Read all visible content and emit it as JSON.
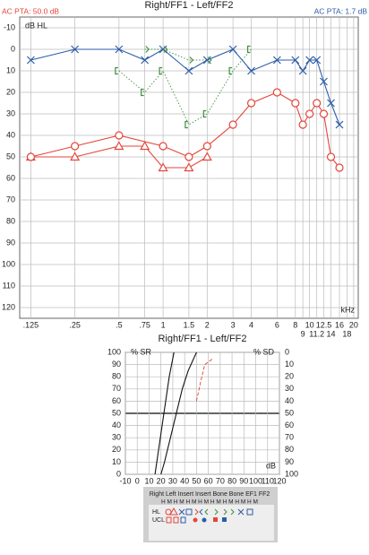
{
  "chart_data": [
    {
      "type": "line",
      "title": "Right/FF1 - Left/FF2",
      "left_note": "AC PTA: 50.0 dB",
      "right_note": "AC PTA: 1.7 dB",
      "y_label": "dB HL",
      "x_label": "kHz",
      "xscale": "log",
      "yreversed": true,
      "xlim": [
        0.105,
        21.5
      ],
      "ylim": [
        -15,
        125
      ],
      "grid": true,
      "xticks": [
        {
          "value": 0.125,
          "label": ".125"
        },
        {
          "value": 0.25,
          "label": ".25"
        },
        {
          "value": 0.5,
          "label": ".5"
        },
        {
          "value": 0.75,
          "label": ".75"
        },
        1,
        1.5,
        2,
        3,
        4,
        6,
        8,
        9,
        10,
        11.2,
        12.5,
        14,
        16,
        18,
        20
      ],
      "yticks": [
        -10,
        0,
        10,
        20,
        30,
        40,
        50,
        60,
        70,
        80,
        90,
        100,
        110,
        120
      ],
      "series": [
        {
          "color": "#e5453b",
          "marker": "triangle",
          "line": "solid",
          "x": [
            0.125,
            0.25,
            0.5,
            0.75,
            1,
            1.5,
            2
          ],
          "values": [
            50,
            50,
            45,
            45,
            55,
            55,
            50
          ]
        },
        {
          "color": "#e5453b",
          "marker": "circle",
          "line": "solid",
          "x": [
            0.125,
            0.25,
            0.5,
            1,
            1.5,
            2,
            3,
            4,
            6,
            8,
            9,
            10,
            11.2,
            12.5,
            14,
            16
          ],
          "values": [
            50,
            45,
            40,
            45,
            50,
            45,
            35,
            25,
            20,
            25,
            35,
            30,
            25,
            30,
            50,
            55
          ]
        },
        {
          "color": "#2b5ca8",
          "marker": "x",
          "line": "solid",
          "x": [
            0.125,
            0.25,
            0.5,
            0.75,
            1,
            1.5,
            2,
            3,
            4,
            6,
            8,
            9,
            10,
            11.2,
            12.5,
            14,
            16
          ],
          "values": [
            5,
            0,
            0,
            5,
            0,
            10,
            5,
            0,
            10,
            5,
            5,
            10,
            5,
            5,
            15,
            25,
            35
          ]
        },
        {
          "color": "#3f8f3f",
          "marker": "gt",
          "line": "dotted",
          "x": [
            0.75,
            1,
            1.5,
            2
          ],
          "values": [
            0,
            0,
            5,
            5
          ]
        },
        {
          "color": "#3f8f3f",
          "marker": "bracket",
          "line": "dotted",
          "x": [
            0.5,
            0.75,
            1,
            1.5,
            2,
            3,
            4
          ],
          "values": [
            10,
            20,
            10,
            35,
            30,
            10,
            0
          ]
        }
      ]
    },
    {
      "type": "line",
      "title": "Right/FF1 - Left/FF2",
      "y_label": "% SR",
      "y2_label": "% SD",
      "x_label": "dB",
      "xlim": [
        -10,
        120
      ],
      "ylim": [
        0,
        100
      ],
      "y2lim": [
        100,
        0
      ],
      "highlight_y": 50,
      "grid": true,
      "xticks": [
        -10,
        0,
        10,
        20,
        30,
        40,
        50,
        60,
        70,
        80,
        90,
        100,
        110,
        120
      ],
      "yticks": [
        0,
        10,
        20,
        30,
        40,
        50,
        60,
        70,
        80,
        90,
        100
      ],
      "y2ticks": [
        0,
        10,
        20,
        30,
        40,
        50,
        60,
        70,
        80,
        90,
        100
      ],
      "series": [
        {
          "color": "#111111",
          "line": "solid",
          "x": [
            15,
            18,
            21,
            24,
            27,
            31
          ],
          "values": [
            0,
            20,
            40,
            60,
            80,
            100
          ]
        },
        {
          "color": "#111111",
          "line": "solid",
          "x": [
            20,
            23,
            28,
            33,
            38,
            43,
            50
          ],
          "values": [
            0,
            10,
            30,
            50,
            70,
            85,
            100
          ]
        },
        {
          "color": "#e5453b",
          "line": "dashed",
          "x": [
            50,
            54,
            57,
            64
          ],
          "values": [
            60,
            78,
            90,
            95
          ]
        }
      ]
    }
  ],
  "legend_box": {
    "columns": "Right Left  Insert Insert Bone  Bone  EF1   FF2",
    "codes": "H M H M H M H M H M H M H M H M",
    "rows": [
      "HL",
      "UCL"
    ]
  }
}
